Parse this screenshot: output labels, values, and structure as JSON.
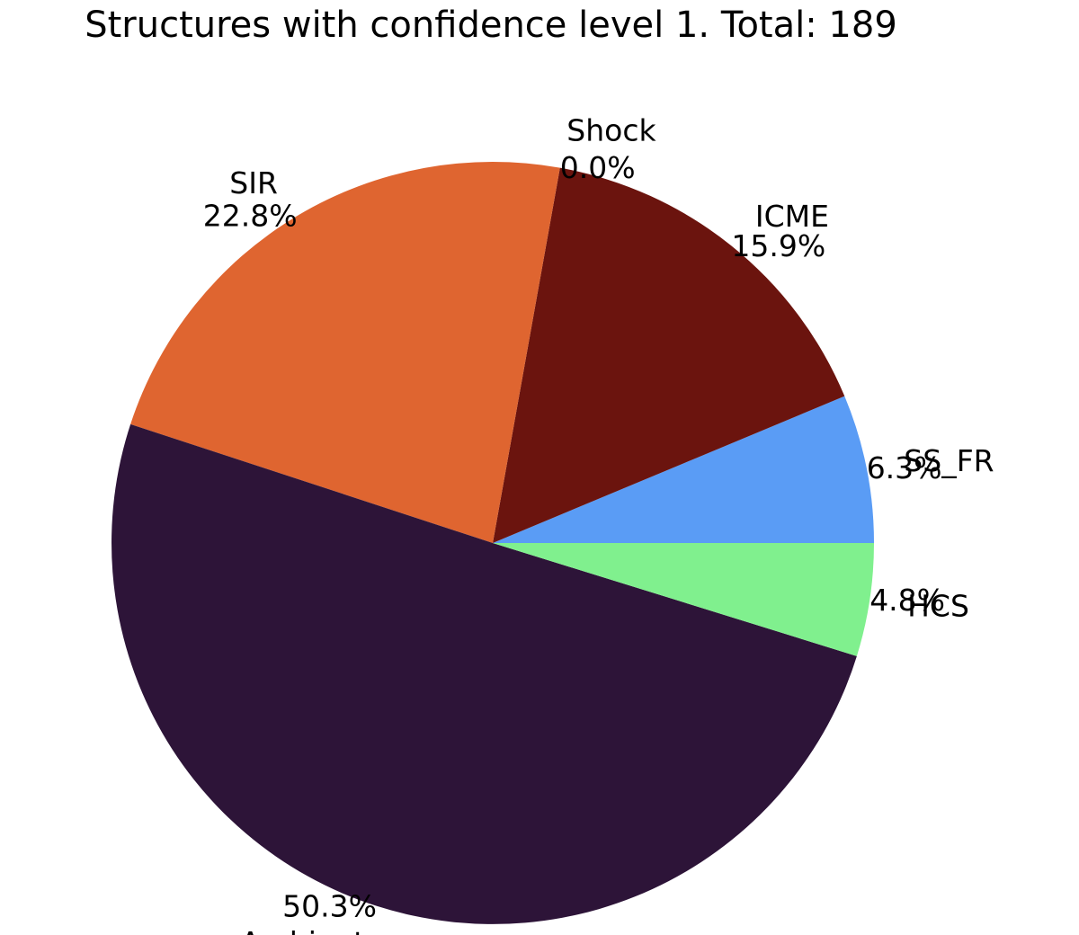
{
  "chart_data": {
    "type": "pie",
    "title": "Structures with confidence level 1. Total: 189",
    "slices": [
      {
        "label": "SS_FR",
        "pct_label": "6.3%",
        "value": 6.3,
        "color": "#5a9cf5"
      },
      {
        "label": "ICME",
        "pct_label": "15.9%",
        "value": 15.9,
        "color": "#6b140e"
      },
      {
        "label": "Shock",
        "pct_label": "0.0%",
        "value": 0.0,
        "color": "#a01818"
      },
      {
        "label": "SIR",
        "pct_label": "22.8%",
        "value": 22.8,
        "color": "#df6530"
      },
      {
        "label": "Ambient",
        "pct_label": "50.3%",
        "value": 50.3,
        "color": "#2d1438"
      },
      {
        "label": "HCS",
        "pct_label": "4.8%",
        "value": 4.8,
        "color": "#80f08e"
      }
    ],
    "start_angle_deg": 0,
    "direction": "counterclockwise"
  }
}
